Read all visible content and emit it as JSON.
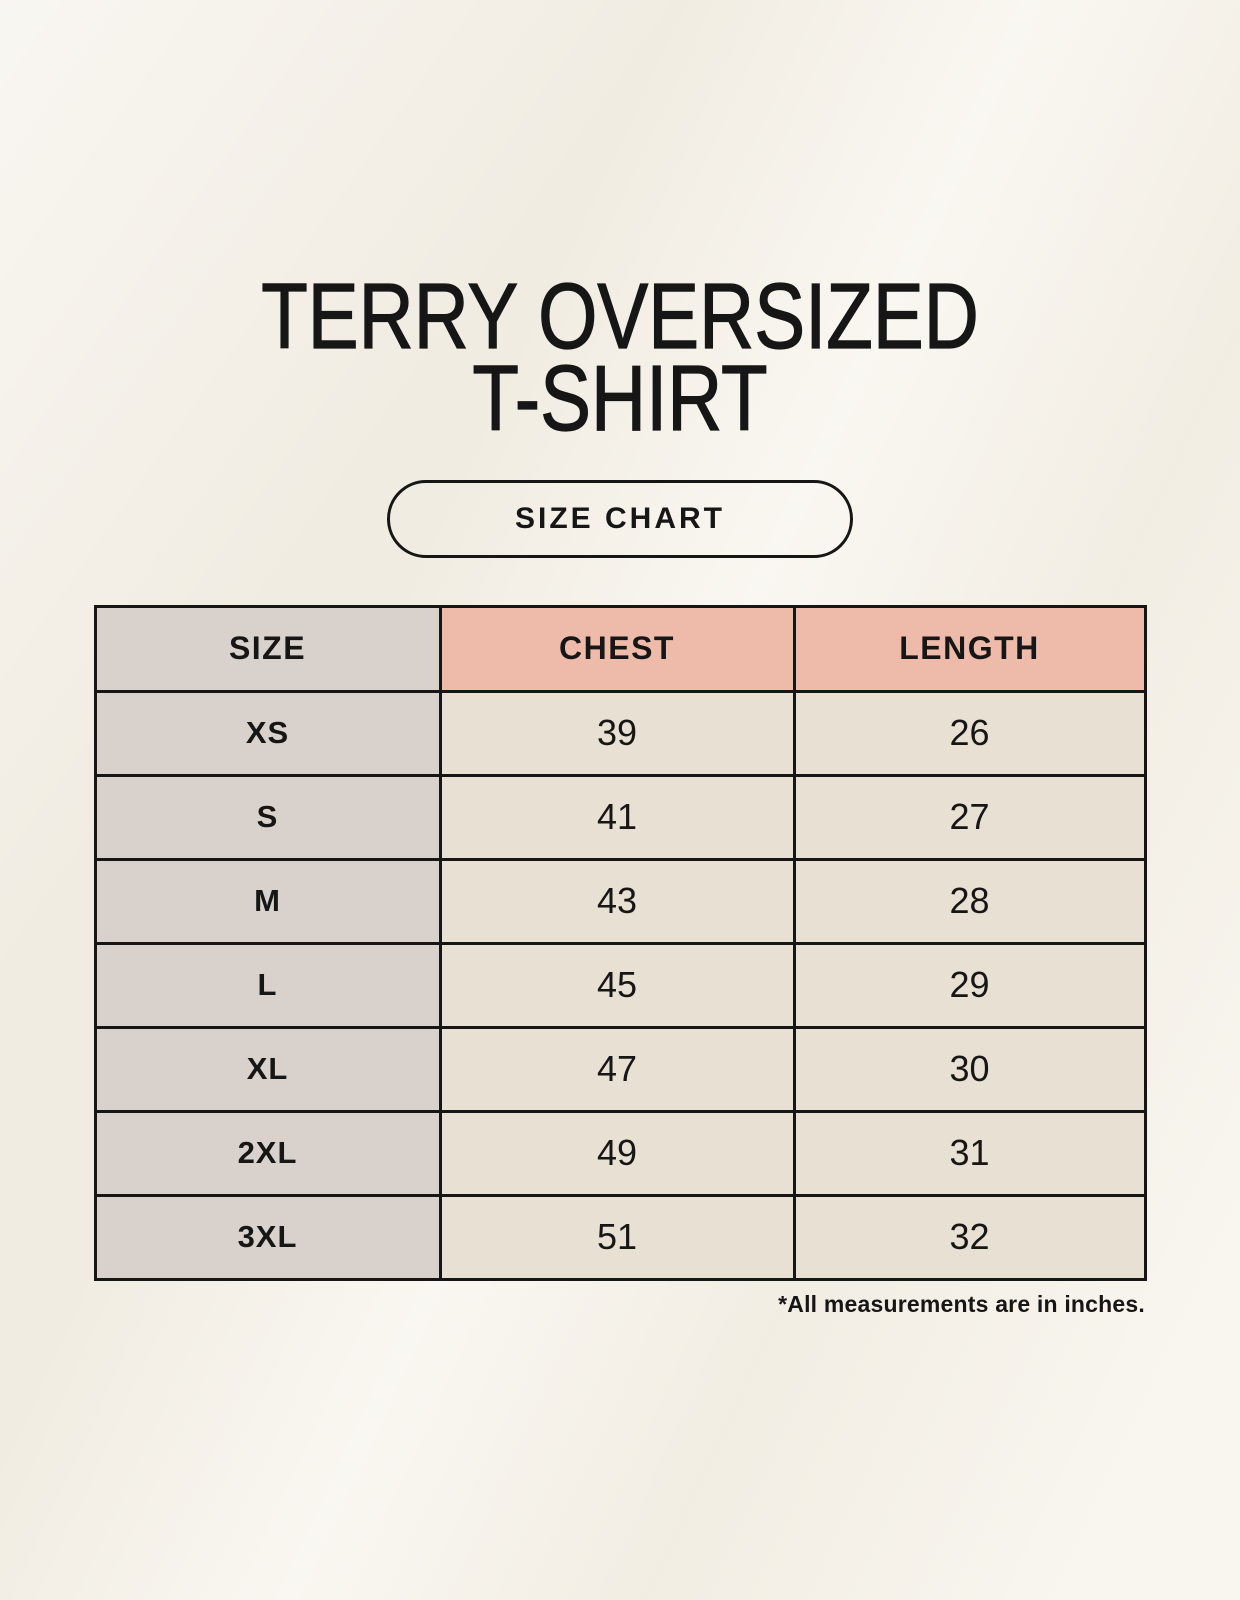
{
  "header": {
    "title_line1": "TERRY OVERSIZED",
    "title_line2": "T-SHIRT",
    "size_chart_button": "SIZE CHART"
  },
  "chart_data": {
    "type": "table",
    "title": "TERRY OVERSIZED T-SHIRT — SIZE CHART",
    "columns": [
      "SIZE",
      "CHEST",
      "LENGTH"
    ],
    "rows": [
      {
        "size": "XS",
        "chest": "39",
        "length": "26"
      },
      {
        "size": "S",
        "chest": "41",
        "length": "27"
      },
      {
        "size": "M",
        "chest": "43",
        "length": "28"
      },
      {
        "size": "L",
        "chest": "45",
        "length": "29"
      },
      {
        "size": "XL",
        "chest": "47",
        "length": "30"
      },
      {
        "size": "2XL",
        "chest": "49",
        "length": "31"
      },
      {
        "size": "3XL",
        "chest": "51",
        "length": "32"
      }
    ],
    "footnote": "*All measurements are in inches.",
    "layout": {
      "grid": "on",
      "header_position": "top"
    }
  },
  "colors": {
    "background": "#f6f2e9",
    "header_accent": "#eebbaa",
    "size_column_bg": "#d9d2cc",
    "cell_bg": "#e7e0d3",
    "border": "#161616",
    "text": "#161616"
  }
}
